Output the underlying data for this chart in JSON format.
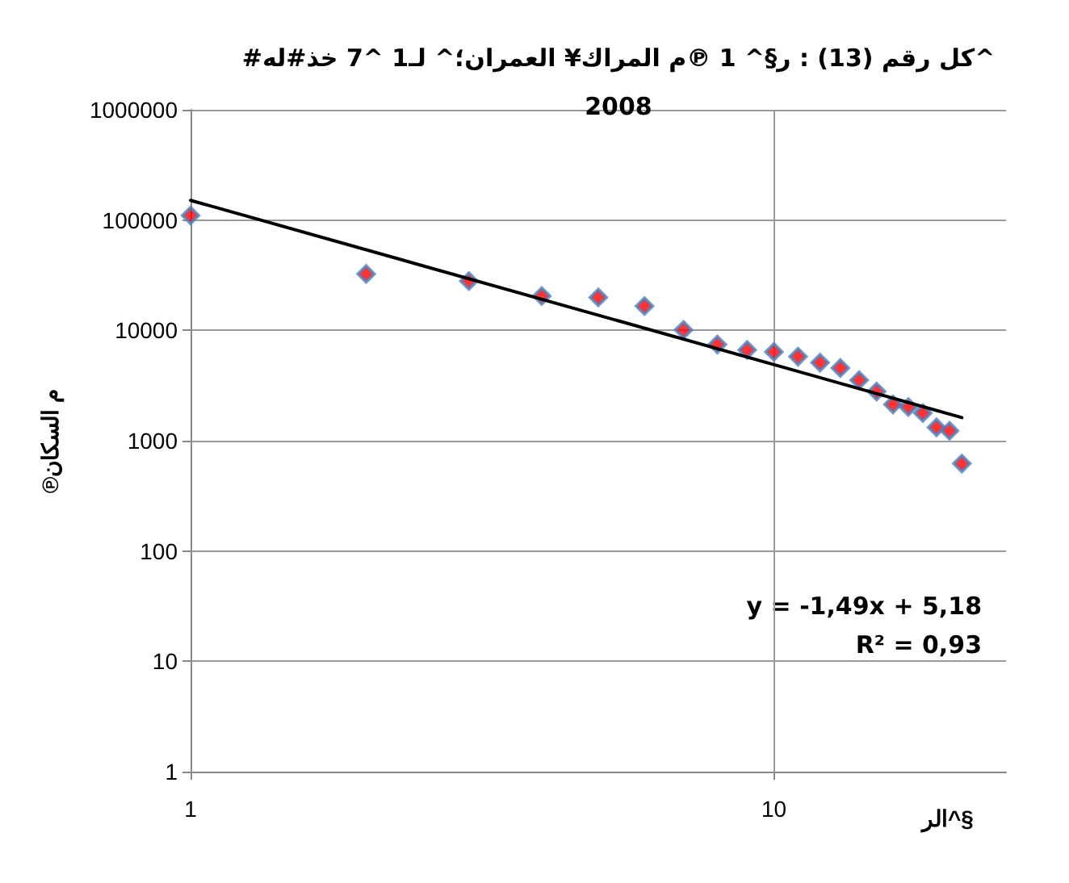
{
  "chart_data": {
    "type": "scatter",
    "title": "#كل رقم (13) : ر§^ 1 ℗م المراك¥ العمران؛^ لـ1 ^7 خذ#له^\n2008",
    "xlabel": "الر^§",
    "ylabel": "℗م السكان",
    "x": [
      1,
      2,
      3,
      4,
      5,
      6,
      7,
      8,
      9,
      10,
      11,
      12,
      13,
      14,
      15,
      16,
      17,
      18,
      19,
      20,
      21
    ],
    "series": [
      {
        "color": "#ff0000",
        "values": [
          110000,
          32500,
          28000,
          20500,
          19900,
          16600,
          10100,
          7450,
          6650,
          6380,
          5780,
          5100,
          4560,
          3540,
          2790,
          2130,
          2020,
          1780,
          1320,
          1230,
          620
        ]
      },
      {
        "type": "line",
        "marker": "none",
        "color": "#000000",
        "x": [
          1,
          21
        ],
        "values": [
          151000,
          1620
        ]
      }
    ],
    "log": "xy",
    "xlim": [
      1,
      25
    ],
    "xticks": [
      1,
      10
    ],
    "ylim": [
      1,
      1000000
    ],
    "yticks": [
      1,
      10,
      100,
      1000,
      10000,
      100000,
      1000000
    ],
    "grid": true,
    "marker": "diamond",
    "annotations": [
      "y = -1,49x + 5,18",
      "R² = 0,93"
    ]
  }
}
